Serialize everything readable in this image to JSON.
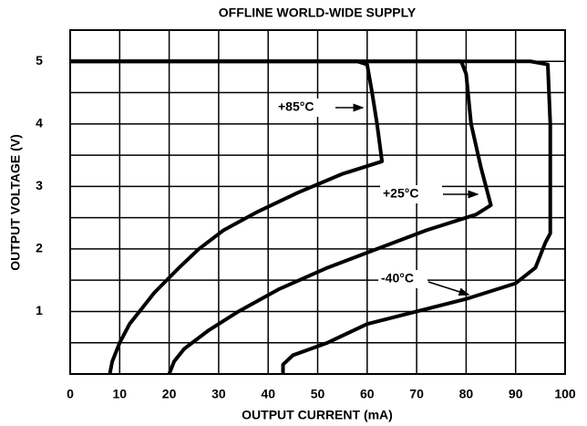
{
  "chart_data": {
    "type": "line",
    "title": "OFFLINE WORLD-WIDE SUPPLY",
    "xlabel": "OUTPUT CURRENT (mA)",
    "ylabel": "OUTPUT VOLTAGE (V)",
    "xlim": [
      0,
      100
    ],
    "ylim": [
      0,
      5.5
    ],
    "xticks": [
      0,
      10,
      20,
      30,
      40,
      50,
      60,
      70,
      80,
      90,
      100
    ],
    "yticks": [
      1,
      2,
      3,
      4,
      5
    ],
    "ygrid": [
      0.5,
      1,
      1.5,
      2,
      2.5,
      3,
      3.5,
      4,
      4.5,
      5
    ],
    "grid": true,
    "series": [
      {
        "name": "+85°C",
        "color": "#000000",
        "x": [
          0,
          58,
          60,
          61,
          62,
          63,
          55,
          46,
          38,
          31,
          26,
          22,
          17,
          14,
          12,
          10,
          8.5,
          8
        ],
        "values": [
          5,
          5,
          4.95,
          4.5,
          4,
          3.4,
          3.2,
          2.9,
          2.6,
          2.3,
          2,
          1.7,
          1.3,
          1,
          0.8,
          0.5,
          0.2,
          0
        ]
      },
      {
        "name": "+25°C",
        "color": "#000000",
        "x": [
          0,
          79,
          80,
          81,
          83,
          85,
          82,
          72,
          62,
          52,
          42,
          34,
          28,
          23,
          21,
          20
        ],
        "values": [
          5,
          5,
          4.8,
          4,
          3.3,
          2.7,
          2.55,
          2.3,
          2,
          1.7,
          1.35,
          1,
          0.7,
          0.4,
          0.2,
          0
        ]
      },
      {
        "name": "-40°C",
        "color": "#000000",
        "x": [
          0,
          93,
          96.5,
          97,
          97,
          97,
          96,
          94,
          90,
          80,
          70,
          60,
          52,
          45,
          43,
          43
        ],
        "values": [
          5,
          5,
          4.95,
          4,
          3,
          2.25,
          2.1,
          1.7,
          1.45,
          1.2,
          1,
          0.8,
          0.5,
          0.3,
          0.15,
          0
        ]
      }
    ]
  }
}
